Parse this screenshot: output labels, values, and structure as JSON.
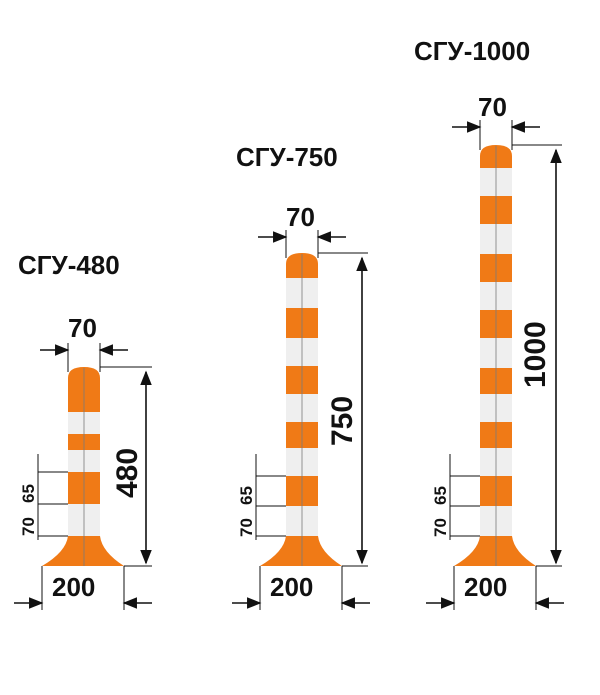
{
  "colors": {
    "orange": "#f07a16",
    "white": "#efefef",
    "ink": "#111111"
  },
  "posts": [
    {
      "title": "СГУ-480",
      "top_label": "70",
      "height_label": "480",
      "base_label": "200",
      "stripe_label_a": "65",
      "stripe_label_b": "70"
    },
    {
      "title": "СГУ-750",
      "top_label": "70",
      "height_label": "750",
      "base_label": "200",
      "stripe_label_a": "65",
      "stripe_label_b": "70"
    },
    {
      "title": "СГУ-1000",
      "top_label": "70",
      "height_label": "1000",
      "base_label": "200",
      "stripe_label_a": "65",
      "stripe_label_b": "70"
    }
  ]
}
